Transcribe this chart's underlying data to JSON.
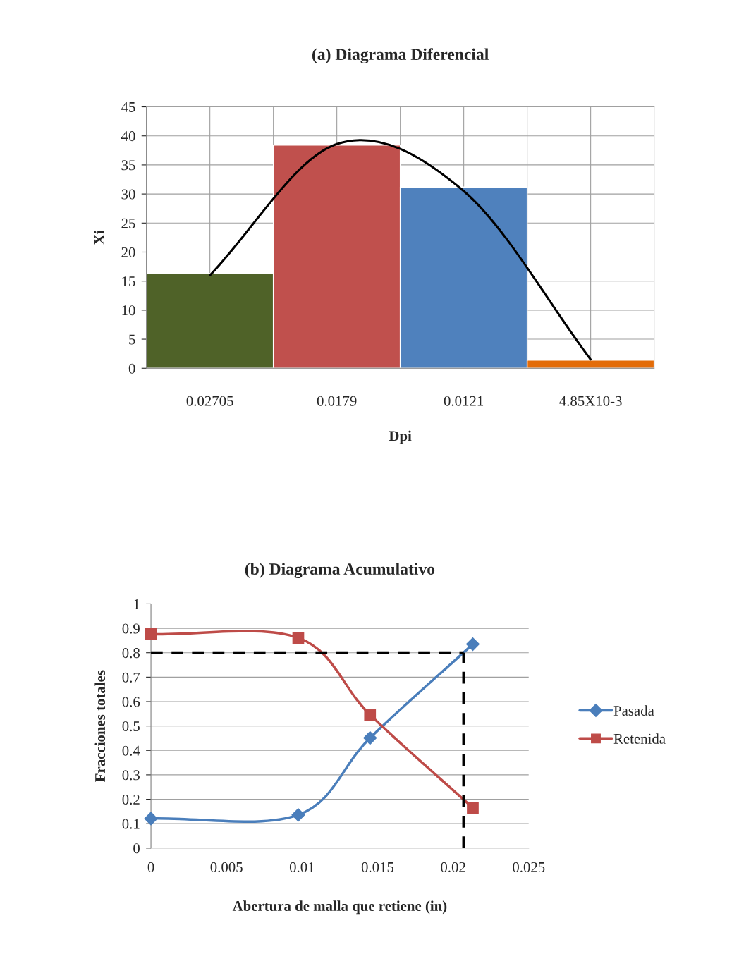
{
  "chart_data": [
    {
      "type": "bar",
      "title": "(a) Diagrama Diferencial",
      "xlabel": "Dpi",
      "ylabel": "Xi",
      "categories": [
        "0.02705",
        "0.0179",
        "0.0121",
        "4.85X10-3"
      ],
      "series": [
        {
          "type": "bar",
          "colors": [
            "#4f6228",
            "#c0504d",
            "#4f81bd",
            "#e36c09"
          ],
          "values": [
            16.3,
            38.4,
            31.2,
            1.4
          ]
        },
        {
          "type": "line",
          "color": "#000000",
          "values": [
            16,
            38.6,
            30.5,
            1.5
          ]
        }
      ],
      "ylim": [
        0,
        45
      ],
      "yticks": [
        0,
        5,
        10,
        15,
        20,
        25,
        30,
        35,
        40,
        45
      ],
      "grid": true
    },
    {
      "type": "line",
      "title": "(b) Diagrama Acumulativo",
      "xlabel": "Abertura de malla que retiene (in)",
      "ylabel": "Fracciones totales",
      "series": [
        {
          "name": "Pasada",
          "color": "#4a7ebb",
          "marker": "diamond",
          "x": [
            0,
            0.00975,
            0.0145,
            0.0213
          ],
          "values": [
            0.121,
            0.136,
            0.451,
            0.835
          ]
        },
        {
          "name": "Retenida",
          "color": "#be4b48",
          "marker": "square",
          "x": [
            0,
            0.00975,
            0.0145,
            0.0213
          ],
          "values": [
            0.876,
            0.861,
            0.546,
            0.165
          ]
        }
      ],
      "ref_lines": [
        {
          "axis": "y",
          "value": 0.8,
          "color": "#000000",
          "line_style": "dashed"
        },
        {
          "axis": "x",
          "value": 0.0207,
          "color": "#000000",
          "line_style": "dashed"
        }
      ],
      "xlim": [
        0,
        0.025
      ],
      "xticks": [
        0,
        0.005,
        0.01,
        0.015,
        0.02,
        0.025
      ],
      "ylim": [
        0,
        1
      ],
      "yticks": [
        0,
        0.1,
        0.2,
        0.3,
        0.4,
        0.5,
        0.6,
        0.7,
        0.8,
        0.9,
        1
      ],
      "grid": "y",
      "legend": "right"
    }
  ]
}
